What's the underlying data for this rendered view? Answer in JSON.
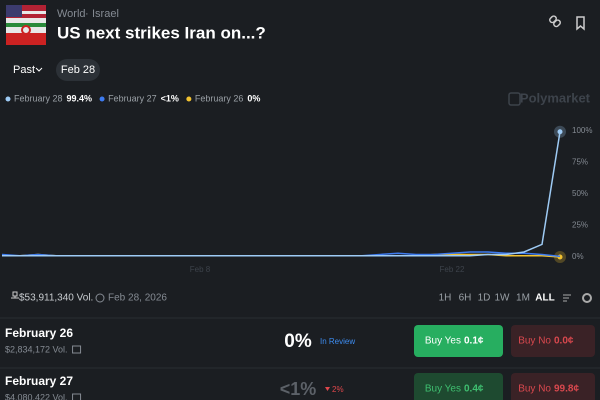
{
  "header": {
    "breadcrumb": [
      "World",
      "Israel"
    ],
    "title": "US next strikes Iran on...?"
  },
  "filters": [
    "Past",
    "Feb 28"
  ],
  "brand": "Polymarket",
  "chart_data": {
    "type": "line",
    "categories": [
      null,
      null,
      null,
      null,
      null,
      null,
      null,
      null,
      null,
      null,
      null,
      "Feb 8",
      null,
      null,
      null,
      null,
      null,
      null,
      null,
      null,
      null,
      null,
      null,
      null,
      null,
      "Feb 22",
      null,
      null,
      null,
      null,
      null,
      null
    ],
    "series": [
      {
        "name": "February 28",
        "color": "#9ecbf5",
        "current_label": "99.4%",
        "values": [
          1,
          1,
          1,
          1,
          1,
          1,
          1,
          1,
          1,
          1,
          1,
          1,
          1,
          1,
          1,
          1,
          1,
          1,
          1,
          1,
          1,
          1,
          1,
          1,
          1,
          1,
          1,
          2,
          2,
          4,
          10,
          99.4
        ]
      },
      {
        "name": "February 27",
        "color": "#3d7bf0",
        "current_label": "<1%",
        "values": [
          2,
          1,
          2,
          1,
          1,
          1,
          1,
          1,
          1,
          1,
          1,
          1,
          1,
          1,
          1,
          1,
          1,
          1,
          1,
          1,
          1,
          2,
          3,
          2,
          2,
          3,
          4,
          4,
          3,
          3,
          2,
          0.5
        ]
      },
      {
        "name": "February 26",
        "color": "#f2c230",
        "current_label": "0%",
        "values": [
          1,
          1,
          2,
          1,
          1,
          1,
          1,
          1,
          1,
          1,
          1,
          1,
          1,
          1,
          1,
          1,
          1,
          1,
          1,
          1,
          1,
          1,
          1,
          1,
          2,
          2,
          2,
          2,
          1,
          1,
          1,
          0
        ]
      }
    ],
    "ylim": [
      0,
      100
    ],
    "yticks": [
      {
        "value": 0,
        "label": "0%"
      },
      {
        "value": 25,
        "label": "25%"
      },
      {
        "value": 50,
        "label": "50%"
      },
      {
        "value": 75,
        "label": "75%"
      },
      {
        "value": 100,
        "label": "100%"
      }
    ],
    "grid": false
  },
  "stats": {
    "volume": "$53,911,340 Vol.",
    "end_date": "Feb 28, 2026"
  },
  "ranges": [
    "1H",
    "6H",
    "1D",
    "1W",
    "1M",
    "ALL"
  ],
  "outcomes": [
    {
      "name": "February 26",
      "volume": "$2,834,172 Vol.",
      "chance": "0%",
      "status": "In Review",
      "buy_yes": "Buy Yes",
      "yes_price": "0.1¢",
      "buy_no": "Buy No",
      "no_price": "0.0¢"
    },
    {
      "name": "February 27",
      "volume": "$4,080,422 Vol.",
      "chance": "<1%",
      "change": "2%",
      "buy_yes": "Buy Yes",
      "yes_price": "0.4¢",
      "buy_no": "Buy No",
      "no_price": "99.8¢"
    }
  ]
}
